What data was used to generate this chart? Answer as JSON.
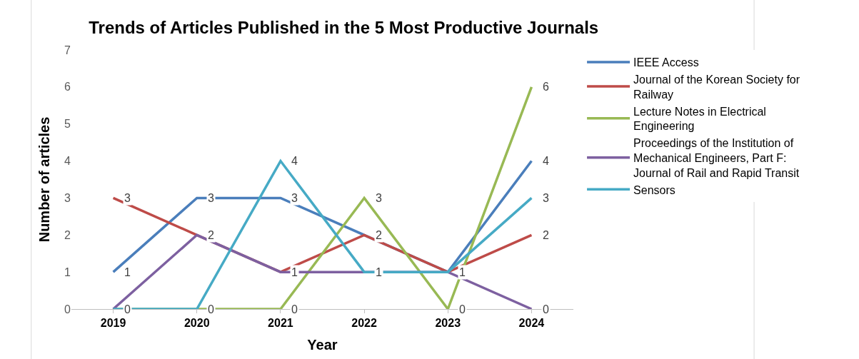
{
  "chart_data": {
    "type": "line",
    "title": "Trends of Articles Published in the 5 Most Productive Journals",
    "xlabel": "Year",
    "ylabel": "Number of articles",
    "categories": [
      "2019",
      "2020",
      "2021",
      "2022",
      "2023",
      "2024"
    ],
    "series": [
      {
        "name": "IEEE Access",
        "color": "#4a7ebb",
        "values": [
          1,
          3,
          3,
          2,
          1,
          4
        ],
        "value_labels": [
          "1",
          "3",
          "3",
          "2",
          "1",
          "4"
        ]
      },
      {
        "name": "Journal of the Korean Society for Railway",
        "color": "#be4b48",
        "values": [
          3,
          2,
          1,
          2,
          1,
          2
        ],
        "value_labels": [
          "3",
          "2",
          "1",
          null,
          null,
          "2"
        ]
      },
      {
        "name": "Lecture Notes in Electrical Engineering",
        "color": "#98b954",
        "values": [
          0,
          0,
          0,
          3,
          0,
          6
        ],
        "value_labels": [
          null,
          null,
          "0",
          "3",
          "0",
          "6"
        ]
      },
      {
        "name": "Proceedings of the Institution of Mechanical Engineers, Part F: Journal of Rail and Rapid Transit",
        "color": "#7d60a0",
        "values": [
          0,
          2,
          1,
          1,
          1,
          0
        ],
        "value_labels": [
          "0",
          null,
          null,
          null,
          null,
          "0"
        ]
      },
      {
        "name": "Sensors",
        "color": "#46aac5",
        "values": [
          0,
          0,
          4,
          1,
          1,
          3
        ],
        "value_labels": [
          null,
          "0",
          "4",
          "1",
          null,
          "3"
        ]
      }
    ],
    "ylim": [
      0,
      7
    ],
    "yticks": [
      0,
      1,
      2,
      3,
      4,
      5,
      6,
      7
    ],
    "grid": false,
    "legend": "right",
    "marker": "none",
    "line_style": "solid"
  }
}
